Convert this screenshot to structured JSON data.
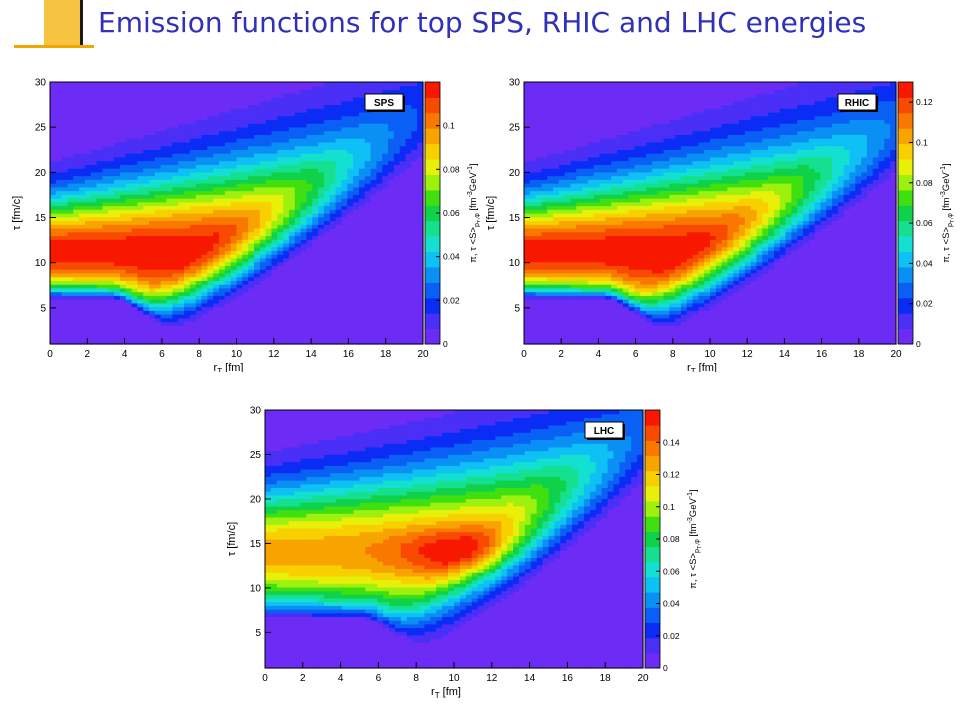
{
  "slide": {
    "title": "Emission functions for top SPS, RHIC and LHC energies"
  },
  "chart_data": [
    {
      "type": "heatmap",
      "name": "SPS",
      "label": "SPS",
      "xlabel": "r_T [fm]",
      "ylabel": "τ [fm/c]",
      "zlabel": "π, τ <S>_{p_T,φ} [fm^-3 GeV^-1]",
      "xlim": [
        0,
        20
      ],
      "ylim": [
        1,
        30
      ],
      "zlim": [
        0,
        0.12
      ],
      "xticks": [
        0,
        2,
        4,
        6,
        8,
        10,
        12,
        14,
        16,
        18,
        20
      ],
      "yticks": [
        5,
        10,
        15,
        20,
        25,
        30
      ],
      "zticks": [
        0,
        0.02,
        0.04,
        0.06,
        0.08,
        0.1
      ],
      "peak": {
        "x": [
          0,
          7
        ],
        "y": [
          9,
          13
        ],
        "value": 0.12
      },
      "edge_min": {
        "x": 7.2,
        "y": 2
      }
    },
    {
      "type": "heatmap",
      "name": "RHIC",
      "label": "RHIC",
      "xlabel": "r_T [fm]",
      "ylabel": "τ [fm/c]",
      "zlabel": "π, τ <S>_{p_T,φ} [fm^-3 GeV^-1]",
      "xlim": [
        0,
        20
      ],
      "ylim": [
        1,
        30
      ],
      "zlim": [
        0,
        0.13
      ],
      "xticks": [
        0,
        2,
        4,
        6,
        8,
        10,
        12,
        14,
        16,
        18,
        20
      ],
      "yticks": [
        5,
        10,
        15,
        20,
        25,
        30
      ],
      "zticks": [
        0,
        0.02,
        0.04,
        0.06,
        0.08,
        0.1,
        0.12
      ],
      "peak": {
        "x": [
          0,
          8
        ],
        "y": [
          9,
          13
        ],
        "value": 0.13
      },
      "edge_min": {
        "x": 8.2,
        "y": 2
      }
    },
    {
      "type": "heatmap",
      "name": "LHC",
      "label": "LHC",
      "xlabel": "r_T [fm]",
      "ylabel": "τ [fm/c]",
      "zlabel": "π, τ <S>_{p_T,φ} [fm^-3 GeV^-1]",
      "xlim": [
        0,
        20
      ],
      "ylim": [
        1,
        30
      ],
      "zlim": [
        0,
        0.16
      ],
      "xticks": [
        0,
        2,
        4,
        6,
        8,
        10,
        12,
        14,
        16,
        18,
        20
      ],
      "yticks": [
        5,
        10,
        15,
        20,
        25,
        30
      ],
      "zticks": [
        0,
        0.02,
        0.04,
        0.06,
        0.08,
        0.1,
        0.12,
        0.14
      ],
      "peak": {
        "x": [
          8,
          13
        ],
        "y": [
          12,
          16
        ],
        "value": 0.16
      },
      "edge_min": {
        "x": 9,
        "y": 1.5
      }
    }
  ],
  "colors": {
    "palette": [
      "#6c2cf5",
      "#4a2ff7",
      "#0a2cf5",
      "#0a60f5",
      "#0a90f5",
      "#0fc0f5",
      "#13e0d0",
      "#15e090",
      "#10d24a",
      "#40e010",
      "#9ef00e",
      "#e8f00a",
      "#f8d000",
      "#f8a400",
      "#f87800",
      "#f84a00",
      "#f81800"
    ],
    "frame": "#000000",
    "title": "#3030b8"
  }
}
